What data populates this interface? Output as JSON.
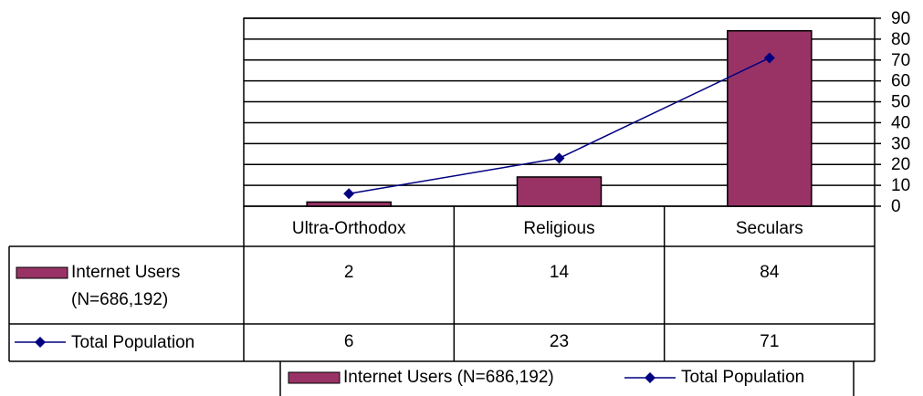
{
  "chart_data": {
    "type": "bar-line",
    "categories": [
      "Ultra-Orthodox",
      "Religious",
      "Seculars"
    ],
    "series": [
      {
        "name": "Internet Users (N=686,192)",
        "type": "bar",
        "color": "#993366",
        "values": [
          2,
          14,
          84
        ]
      },
      {
        "name": "Total Population",
        "type": "line",
        "color": "#000080",
        "values": [
          6,
          23,
          71
        ]
      }
    ],
    "ylim": [
      0,
      90
    ],
    "yticks": [
      0,
      10,
      20,
      30,
      40,
      50,
      60,
      70,
      80,
      90
    ],
    "grid": true,
    "legend": "bottom"
  }
}
